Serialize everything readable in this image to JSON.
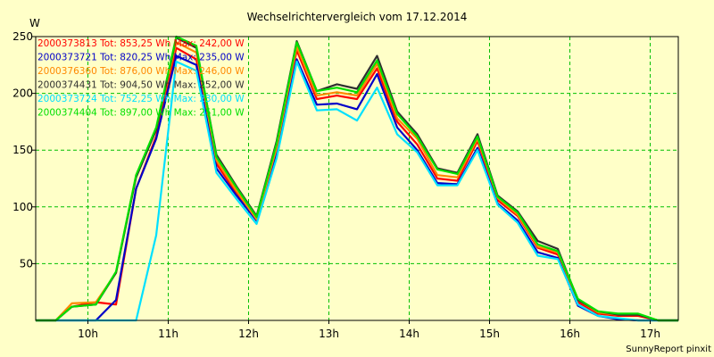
{
  "chart_data": {
    "type": "line",
    "title": "Wechselrichtervergleich vom 17.12.2014",
    "ylabel": "W",
    "footer": "SunnyReport pinxit",
    "ylim": [
      0,
      250
    ],
    "xlim": [
      9.35,
      17.35
    ],
    "yticks": [
      50,
      100,
      150,
      200,
      250
    ],
    "xticks": [
      {
        "value": 10,
        "label": "10h"
      },
      {
        "value": 11,
        "label": "11h"
      },
      {
        "value": 12,
        "label": "12h"
      },
      {
        "value": 13,
        "label": "13h"
      },
      {
        "value": 14,
        "label": "14h"
      },
      {
        "value": 15,
        "label": "15h"
      },
      {
        "value": 16,
        "label": "16h"
      },
      {
        "value": 17,
        "label": "17h"
      }
    ],
    "grid": true,
    "legend_position": "top-left",
    "series": [
      {
        "name": "2000373813 Tot: 853,25 Wh Max: 242,00 W",
        "color": "#ff0000",
        "points": [
          [
            9.35,
            0
          ],
          [
            9.6,
            0
          ],
          [
            9.8,
            12
          ],
          [
            10.1,
            16
          ],
          [
            10.35,
            14
          ],
          [
            10.6,
            116
          ],
          [
            10.85,
            162
          ],
          [
            11.1,
            240
          ],
          [
            11.35,
            230
          ],
          [
            11.6,
            138
          ],
          [
            11.85,
            112
          ],
          [
            12.1,
            88
          ],
          [
            12.35,
            150
          ],
          [
            12.6,
            238
          ],
          [
            12.85,
            195
          ],
          [
            13.1,
            198
          ],
          [
            13.35,
            195
          ],
          [
            13.6,
            222
          ],
          [
            13.85,
            175
          ],
          [
            14.1,
            155
          ],
          [
            14.35,
            125
          ],
          [
            14.6,
            123
          ],
          [
            14.85,
            158
          ],
          [
            15.1,
            106
          ],
          [
            15.35,
            92
          ],
          [
            15.6,
            64
          ],
          [
            15.85,
            58
          ],
          [
            16.1,
            16
          ],
          [
            16.35,
            6
          ],
          [
            16.6,
            4
          ],
          [
            16.85,
            4
          ],
          [
            17.1,
            0
          ],
          [
            17.35,
            0
          ]
        ]
      },
      {
        "name": "2000373721 Tot: 820,25 Wh Max: 235,00 W",
        "color": "#0000c8",
        "points": [
          [
            9.35,
            0
          ],
          [
            9.6,
            0
          ],
          [
            9.8,
            0
          ],
          [
            10.1,
            0
          ],
          [
            10.35,
            18
          ],
          [
            10.6,
            116
          ],
          [
            10.85,
            160
          ],
          [
            11.1,
            233
          ],
          [
            11.35,
            225
          ],
          [
            11.6,
            134
          ],
          [
            11.85,
            110
          ],
          [
            12.1,
            88
          ],
          [
            12.35,
            148
          ],
          [
            12.6,
            230
          ],
          [
            12.85,
            190
          ],
          [
            13.1,
            191
          ],
          [
            13.35,
            186
          ],
          [
            13.6,
            217
          ],
          [
            13.85,
            170
          ],
          [
            14.1,
            150
          ],
          [
            14.35,
            121
          ],
          [
            14.6,
            120
          ],
          [
            14.85,
            152
          ],
          [
            15.1,
            103
          ],
          [
            15.35,
            88
          ],
          [
            15.6,
            60
          ],
          [
            15.85,
            55
          ],
          [
            16.1,
            13
          ],
          [
            16.35,
            4
          ],
          [
            16.6,
            1
          ],
          [
            16.85,
            0
          ],
          [
            17.1,
            0
          ],
          [
            17.35,
            0
          ]
        ]
      },
      {
        "name": "2000376360 Tot: 876,00 Wh Max: 246,00 W",
        "color": "#ff8800",
        "points": [
          [
            9.35,
            0
          ],
          [
            9.6,
            0
          ],
          [
            9.8,
            15
          ],
          [
            10.1,
            16
          ],
          [
            10.35,
            42
          ],
          [
            10.6,
            128
          ],
          [
            10.85,
            168
          ],
          [
            11.1,
            245
          ],
          [
            11.35,
            236
          ],
          [
            11.6,
            141
          ],
          [
            11.85,
            114
          ],
          [
            12.1,
            89
          ],
          [
            12.35,
            152
          ],
          [
            12.6,
            241
          ],
          [
            12.85,
            198
          ],
          [
            13.1,
            201
          ],
          [
            13.35,
            198
          ],
          [
            13.6,
            226
          ],
          [
            13.85,
            178
          ],
          [
            14.1,
            160
          ],
          [
            14.35,
            128
          ],
          [
            14.6,
            126
          ],
          [
            14.85,
            160
          ],
          [
            15.1,
            108
          ],
          [
            15.35,
            93
          ],
          [
            15.6,
            65
          ],
          [
            15.85,
            60
          ],
          [
            16.1,
            18
          ],
          [
            16.35,
            7
          ],
          [
            16.6,
            5
          ],
          [
            16.85,
            5
          ],
          [
            17.1,
            0
          ],
          [
            17.35,
            0
          ]
        ]
      },
      {
        "name": "2000374431 Tot: 904,50 Wh Max: 252,00 W",
        "color": "#303030",
        "points": [
          [
            9.35,
            0
          ],
          [
            9.6,
            0
          ],
          [
            9.8,
            12
          ],
          [
            10.1,
            14
          ],
          [
            10.35,
            42
          ],
          [
            10.6,
            126
          ],
          [
            10.85,
            168
          ],
          [
            11.1,
            249
          ],
          [
            11.35,
            240
          ],
          [
            11.6,
            146
          ],
          [
            11.85,
            118
          ],
          [
            12.1,
            92
          ],
          [
            12.35,
            158
          ],
          [
            12.6,
            246
          ],
          [
            12.85,
            202
          ],
          [
            13.1,
            208
          ],
          [
            13.35,
            204
          ],
          [
            13.6,
            233
          ],
          [
            13.85,
            184
          ],
          [
            14.1,
            164
          ],
          [
            14.35,
            134
          ],
          [
            14.6,
            130
          ],
          [
            14.85,
            164
          ],
          [
            15.1,
            110
          ],
          [
            15.35,
            96
          ],
          [
            15.6,
            70
          ],
          [
            15.85,
            63
          ],
          [
            16.1,
            18
          ],
          [
            16.35,
            8
          ],
          [
            16.6,
            5
          ],
          [
            16.85,
            5
          ],
          [
            17.1,
            0
          ],
          [
            17.35,
            0
          ]
        ]
      },
      {
        "name": "2000373724 Tot: 752,25 Wh Max: 230,00 W",
        "color": "#00e0ff",
        "points": [
          [
            9.35,
            0
          ],
          [
            9.6,
            0
          ],
          [
            9.8,
            0
          ],
          [
            10.1,
            0
          ],
          [
            10.35,
            0
          ],
          [
            10.6,
            0
          ],
          [
            10.85,
            75
          ],
          [
            11.1,
            228
          ],
          [
            11.35,
            220
          ],
          [
            11.6,
            130
          ],
          [
            11.85,
            107
          ],
          [
            12.1,
            85
          ],
          [
            12.35,
            143
          ],
          [
            12.6,
            228
          ],
          [
            12.85,
            185
          ],
          [
            13.1,
            186
          ],
          [
            13.35,
            176
          ],
          [
            13.6,
            205
          ],
          [
            13.85,
            164
          ],
          [
            14.1,
            148
          ],
          [
            14.35,
            119
          ],
          [
            14.6,
            119
          ],
          [
            14.85,
            150
          ],
          [
            15.1,
            102
          ],
          [
            15.35,
            86
          ],
          [
            15.6,
            57
          ],
          [
            15.85,
            54
          ],
          [
            16.1,
            14
          ],
          [
            16.35,
            4
          ],
          [
            16.6,
            2
          ],
          [
            16.85,
            0
          ],
          [
            17.1,
            0
          ],
          [
            17.35,
            0
          ]
        ]
      },
      {
        "name": "2000374404 Tot: 897,00 Wh Max: 251,00 W",
        "color": "#00e000",
        "points": [
          [
            9.35,
            0
          ],
          [
            9.6,
            0
          ],
          [
            9.8,
            12
          ],
          [
            10.1,
            14
          ],
          [
            10.35,
            43
          ],
          [
            10.6,
            128
          ],
          [
            10.85,
            170
          ],
          [
            11.1,
            250
          ],
          [
            11.35,
            242
          ],
          [
            11.6,
            144
          ],
          [
            11.85,
            117
          ],
          [
            12.1,
            91
          ],
          [
            12.35,
            156
          ],
          [
            12.6,
            245
          ],
          [
            12.85,
            202
          ],
          [
            13.1,
            205
          ],
          [
            13.35,
            201
          ],
          [
            13.6,
            229
          ],
          [
            13.85,
            182
          ],
          [
            14.1,
            162
          ],
          [
            14.35,
            133
          ],
          [
            14.6,
            129
          ],
          [
            14.85,
            162
          ],
          [
            15.1,
            109
          ],
          [
            15.35,
            95
          ],
          [
            15.6,
            67
          ],
          [
            15.85,
            61
          ],
          [
            16.1,
            19
          ],
          [
            16.35,
            8
          ],
          [
            16.6,
            6
          ],
          [
            16.85,
            6
          ],
          [
            17.1,
            0
          ],
          [
            17.35,
            0
          ]
        ]
      }
    ]
  }
}
